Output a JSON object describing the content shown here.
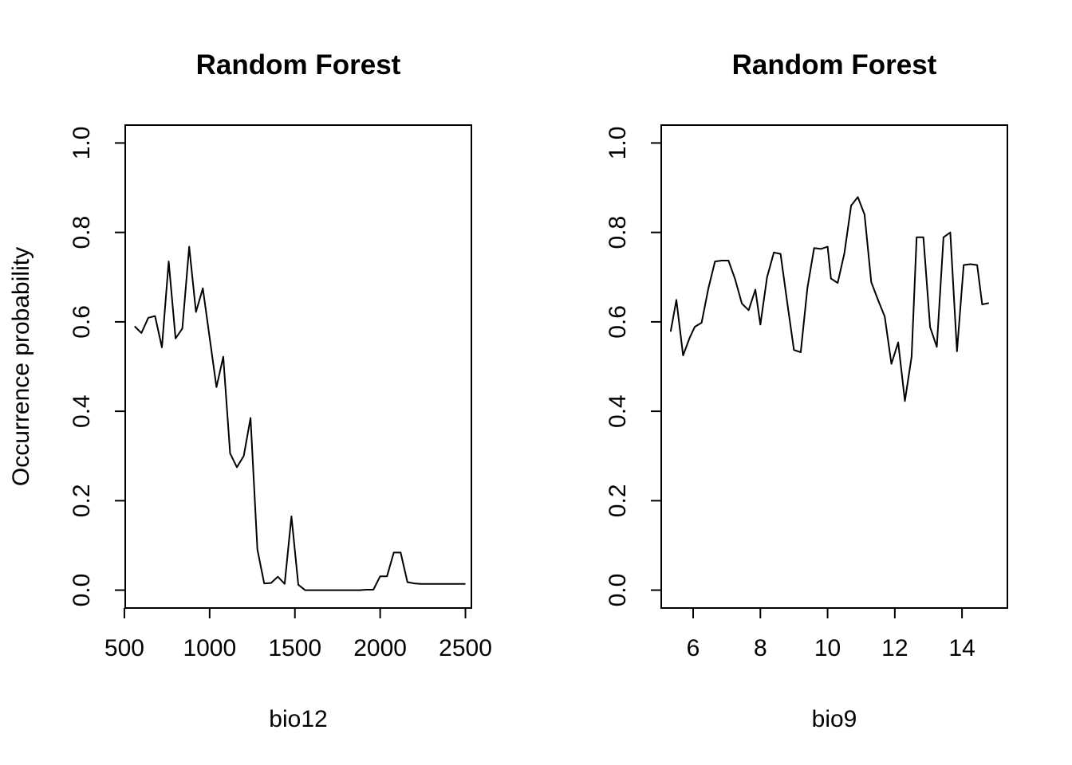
{
  "chart_data": [
    {
      "type": "line",
      "title": "Random Forest",
      "xlabel": "bio12",
      "ylabel": "Occurrence probability",
      "xlim": [
        505,
        2535
      ],
      "ylim": [
        -0.04,
        1.04
      ],
      "xticks": [
        500,
        1000,
        1500,
        2000,
        2500
      ],
      "xtick_labels": [
        "500",
        "1000",
        "1500",
        "2000",
        "2500"
      ],
      "yticks": [
        0.0,
        0.2,
        0.4,
        0.6,
        0.8,
        1.0
      ],
      "ytick_labels": [
        "0.0",
        "0.2",
        "0.4",
        "0.6",
        "0.8",
        "1.0"
      ],
      "grid": false,
      "line_color": "#000000",
      "series": [
        {
          "x": [
            560,
            600,
            640,
            680,
            720,
            760,
            800,
            840,
            880,
            920,
            960,
            1000,
            1040,
            1080,
            1120,
            1160,
            1200,
            1240,
            1280,
            1320,
            1360,
            1400,
            1440,
            1480,
            1520,
            1560,
            1600,
            1640,
            1680,
            1720,
            1760,
            1800,
            1840,
            1880,
            1920,
            1960,
            2000,
            2040,
            2080,
            2120,
            2160,
            2200,
            2240,
            2280,
            2320,
            2360,
            2400,
            2440,
            2480,
            2500
          ],
          "y": [
            0.59,
            0.575,
            0.609,
            0.613,
            0.543,
            0.735,
            0.563,
            0.585,
            0.768,
            0.622,
            0.675,
            0.565,
            0.454,
            0.522,
            0.306,
            0.275,
            0.3,
            0.385,
            0.091,
            0.015,
            0.016,
            0.03,
            0.014,
            0.165,
            0.012,
            0.0,
            0.0,
            0.0,
            0.0,
            0.0,
            0.0,
            0.0,
            0.0,
            0.0,
            0.001,
            0.001,
            0.031,
            0.031,
            0.084,
            0.084,
            0.018,
            0.015,
            0.014,
            0.014,
            0.014,
            0.014,
            0.014,
            0.014,
            0.014,
            0.014
          ]
        }
      ]
    },
    {
      "type": "line",
      "title": "Random Forest",
      "xlabel": "bio9",
      "ylabel": "",
      "xlim": [
        5.05,
        15.35
      ],
      "ylim": [
        -0.04,
        1.04
      ],
      "xticks": [
        6,
        8,
        10,
        12,
        14
      ],
      "xtick_labels": [
        "6",
        "8",
        "10",
        "12",
        "14"
      ],
      "yticks": [
        0.0,
        0.2,
        0.4,
        0.6,
        0.8,
        1.0
      ],
      "ytick_labels": [
        "0.0",
        "0.2",
        "0.4",
        "0.6",
        "0.8",
        "1.0"
      ],
      "grid": false,
      "line_color": "#000000",
      "series": [
        {
          "x": [
            5.33,
            5.5,
            5.7,
            5.9,
            6.05,
            6.25,
            6.45,
            6.65,
            6.85,
            7.05,
            7.25,
            7.45,
            7.65,
            7.85,
            8.0,
            8.2,
            8.4,
            8.6,
            8.8,
            9.0,
            9.2,
            9.4,
            9.6,
            9.8,
            10.0,
            10.1,
            10.3,
            10.5,
            10.7,
            10.9,
            11.1,
            11.3,
            11.5,
            11.7,
            11.9,
            12.1,
            12.3,
            12.5,
            12.65,
            12.85,
            13.05,
            13.25,
            13.45,
            13.65,
            13.85,
            14.05,
            14.25,
            14.45,
            14.6,
            14.8
          ],
          "y": [
            0.578,
            0.649,
            0.525,
            0.565,
            0.589,
            0.598,
            0.674,
            0.735,
            0.737,
            0.737,
            0.695,
            0.641,
            0.626,
            0.672,
            0.594,
            0.7,
            0.755,
            0.752,
            0.643,
            0.537,
            0.532,
            0.676,
            0.765,
            0.763,
            0.768,
            0.697,
            0.687,
            0.753,
            0.86,
            0.879,
            0.84,
            0.689,
            0.649,
            0.612,
            0.506,
            0.554,
            0.423,
            0.522,
            0.789,
            0.789,
            0.588,
            0.544,
            0.789,
            0.8,
            0.534,
            0.727,
            0.729,
            0.727,
            0.639,
            0.642
          ]
        }
      ]
    }
  ]
}
